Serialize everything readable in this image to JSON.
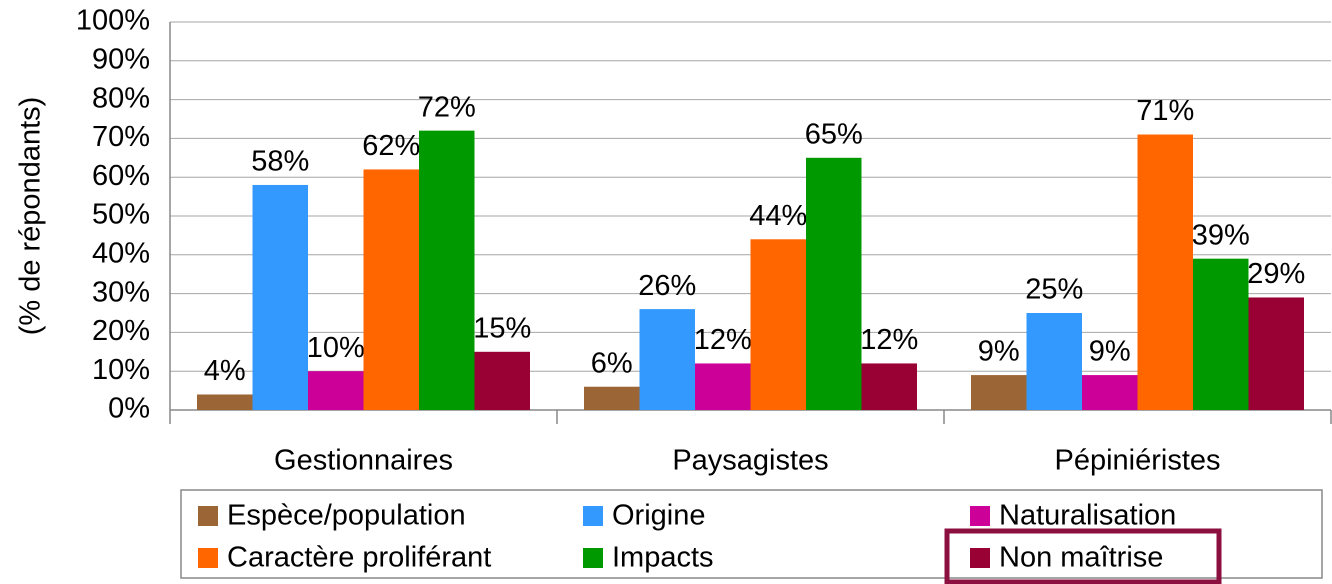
{
  "chart_data": {
    "type": "bar",
    "y_label": "(% de répondants)",
    "categories": [
      "Gestionnaires",
      "Paysagistes",
      "Pépiniéristes"
    ],
    "series": [
      {
        "name": "Espèce/population",
        "color": "#9c6535",
        "values": [
          4,
          6,
          9
        ],
        "value_labels": [
          "4%",
          "6%",
          "9%"
        ]
      },
      {
        "name": "Origine",
        "color": "#3399ff",
        "values": [
          58,
          26,
          25
        ],
        "value_labels": [
          "58%",
          "26%",
          "25%"
        ]
      },
      {
        "name": "Naturalisation",
        "color": "#cc0099",
        "values": [
          10,
          12,
          9
        ],
        "value_labels": [
          "10%",
          "12%",
          "9%"
        ]
      },
      {
        "name": "Caractère proliférant",
        "color": "#ff6600",
        "values": [
          62,
          44,
          71
        ],
        "value_labels": [
          "62%",
          "44%",
          "71%"
        ]
      },
      {
        "name": "Impacts",
        "color": "#009900",
        "values": [
          72,
          65,
          39
        ],
        "value_labels": [
          "72%",
          "65%",
          "39%"
        ]
      },
      {
        "name": "Non maîtrise",
        "color": "#990033",
        "values": [
          15,
          12,
          29
        ],
        "value_labels": [
          "15%",
          "12%",
          "29%"
        ]
      }
    ],
    "ylim": [
      0,
      100
    ],
    "yticks": [
      {
        "value": 0,
        "label": "0%"
      },
      {
        "value": 10,
        "label": "10%"
      },
      {
        "value": 20,
        "label": "20%"
      },
      {
        "value": 30,
        "label": "30%"
      },
      {
        "value": 40,
        "label": "40%"
      },
      {
        "value": 50,
        "label": "50%"
      },
      {
        "value": 60,
        "label": "60%"
      },
      {
        "value": 70,
        "label": "70%"
      },
      {
        "value": 80,
        "label": "80%"
      },
      {
        "value": 90,
        "label": "90%"
      },
      {
        "value": 100,
        "label": "100%"
      }
    ],
    "grid": true,
    "legend": "bottom"
  }
}
